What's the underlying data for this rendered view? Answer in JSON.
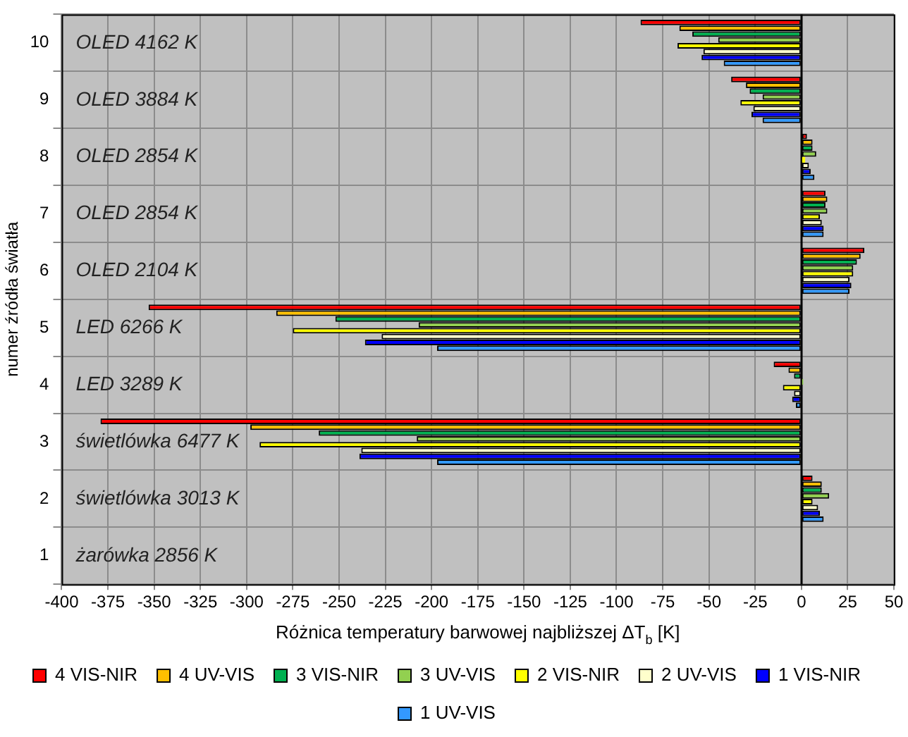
{
  "chart_data": {
    "type": "bar",
    "orientation": "horizontal",
    "xlabel": "Różnica temperatury barwowej najbliższej ΔT$_{b}$ [K]",
    "ylabel": "numer źródła światła",
    "categories": [
      "10",
      "9",
      "8",
      "7",
      "6",
      "5",
      "4",
      "3",
      "2",
      "1"
    ],
    "series": [
      {
        "name": "4 VIS-NIR",
        "color": "#ff0000",
        "values": [
          -87,
          -38,
          3,
          13,
          34,
          -353,
          -15,
          -379,
          6,
          0
        ]
      },
      {
        "name": "4 UV-VIS",
        "color": "#ffc000",
        "values": [
          -66,
          -30,
          6,
          14,
          32,
          -284,
          -7,
          -298,
          11,
          0
        ]
      },
      {
        "name": "3 VIS-NIR",
        "color": "#00b050",
        "values": [
          -59,
          -28,
          6,
          13,
          30,
          -252,
          -4,
          -261,
          11,
          0
        ]
      },
      {
        "name": "3 UV-VIS",
        "color": "#92d050",
        "values": [
          -45,
          -21,
          8,
          14,
          28,
          -207,
          1,
          -208,
          15,
          0
        ]
      },
      {
        "name": "2 VIS-NIR",
        "color": "#ffff00",
        "values": [
          -67,
          -33,
          2,
          10,
          28,
          -275,
          -10,
          -293,
          6,
          0
        ]
      },
      {
        "name": "2 UV-VIS",
        "color": "#ffffcc",
        "values": [
          -53,
          -26,
          4,
          11,
          26,
          -227,
          -4,
          -238,
          9,
          0
        ]
      },
      {
        "name": "1 VIS-NIR",
        "color": "#0000ff",
        "values": [
          -54,
          -27,
          5,
          12,
          27,
          -236,
          -5,
          -239,
          10,
          0
        ]
      },
      {
        "name": "1 UV-VIS",
        "color": "#3399ff",
        "values": [
          -42,
          -21,
          7,
          12,
          26,
          -197,
          -3,
          -197,
          12,
          0
        ]
      }
    ],
    "xlim": [
      -400,
      50
    ],
    "xticks": [
      -400,
      -375,
      -350,
      -325,
      -300,
      -275,
      -250,
      -225,
      -200,
      -175,
      -150,
      -125,
      -100,
      -75,
      -50,
      -25,
      0,
      25,
      50
    ],
    "grid": true,
    "legend": "bottom",
    "annotations": [
      "OLED 4162 K",
      "OLED 3884 K",
      "OLED 2854 K",
      "OLED 2854 K",
      "OLED 2104 K",
      "LED 6266 K",
      "LED 3289 K",
      "świetlówka 6477 K",
      "świetlówka 3013 K",
      "żarówka 2856 K"
    ]
  }
}
